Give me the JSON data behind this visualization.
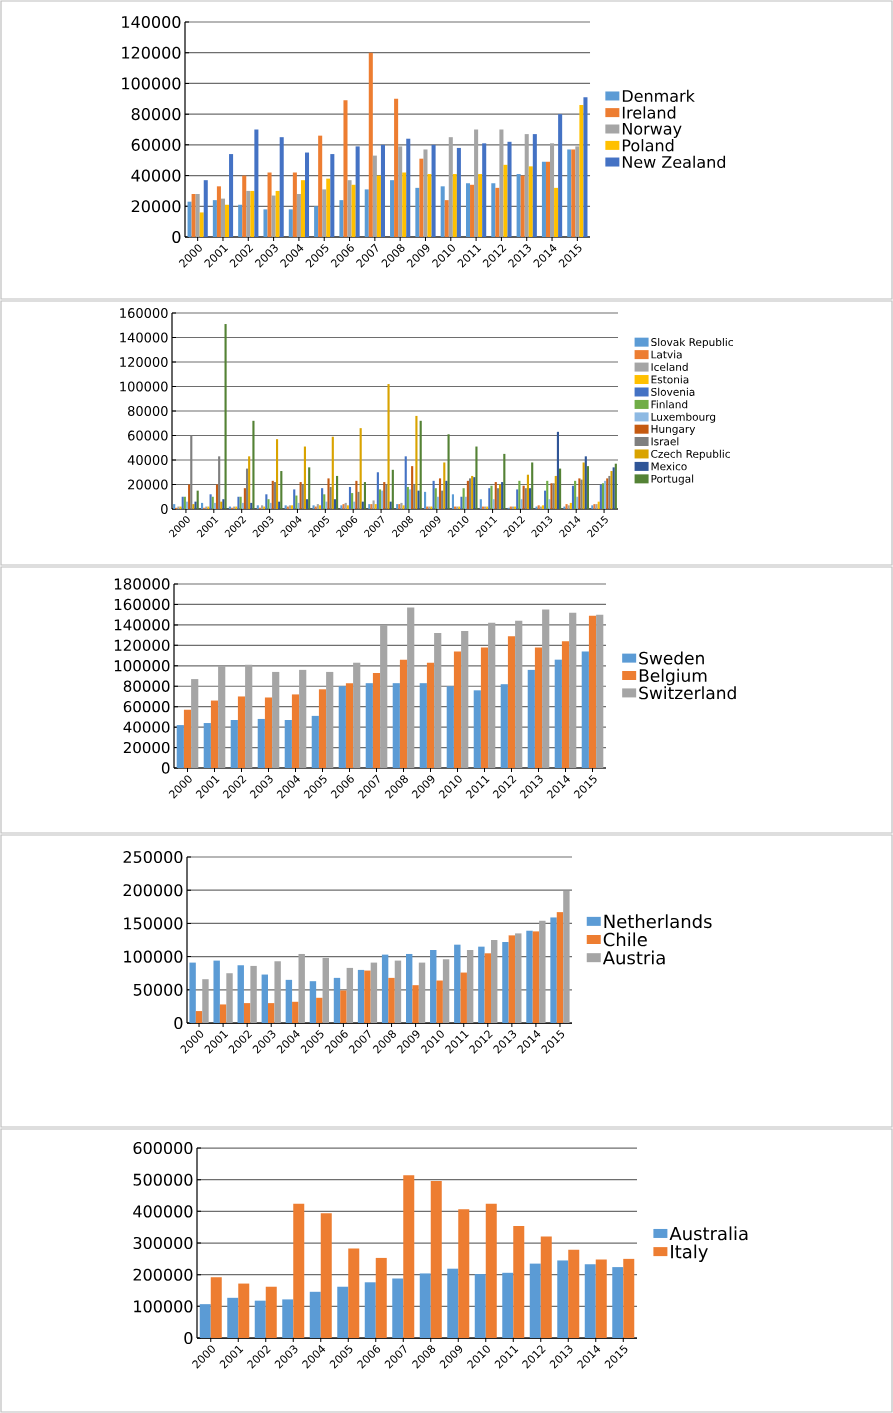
{
  "chart_data": [
    {
      "type": "bar",
      "categories": [
        "2000",
        "2001",
        "2002",
        "2003",
        "2004",
        "2005",
        "2006",
        "2007",
        "2008",
        "2009",
        "2010",
        "2011",
        "2012",
        "2013",
        "2014",
        "2015"
      ],
      "ylim": [
        0,
        140000
      ],
      "yticks": [
        0,
        20000,
        40000,
        60000,
        80000,
        100000,
        120000,
        140000
      ],
      "grid": "y",
      "legend": "right",
      "series": [
        {
          "name": "Denmark",
          "color": "#5b9bd5",
          "values": [
            23000,
            24000,
            21000,
            18000,
            18000,
            20000,
            24000,
            31000,
            37000,
            32000,
            33000,
            35000,
            35000,
            41000,
            49000,
            57000
          ]
        },
        {
          "name": "Ireland",
          "color": "#ed7d31",
          "values": [
            28000,
            33000,
            40000,
            42000,
            42000,
            66000,
            89000,
            120000,
            90000,
            51000,
            24000,
            34000,
            32000,
            40000,
            49000,
            57000
          ]
        },
        {
          "name": "Norway",
          "color": "#a5a5a5",
          "values": [
            28000,
            25000,
            30000,
            27000,
            28000,
            31000,
            37000,
            53000,
            59000,
            57000,
            65000,
            70000,
            70000,
            67000,
            61000,
            59000
          ]
        },
        {
          "name": "Poland",
          "color": "#ffc000",
          "values": [
            16000,
            21000,
            30000,
            30000,
            37000,
            38000,
            34000,
            40000,
            42000,
            41000,
            41000,
            41000,
            47000,
            46000,
            32000,
            86000
          ]
        },
        {
          "name": "New Zealand",
          "color": "#4472c4",
          "values": [
            37000,
            54000,
            70000,
            65000,
            55000,
            54000,
            59000,
            60000,
            64000,
            60000,
            58000,
            61000,
            62000,
            67000,
            80000,
            91000
          ]
        }
      ]
    },
    {
      "type": "bar",
      "categories": [
        "2000",
        "2001",
        "2002",
        "2003",
        "2004",
        "2005",
        "2006",
        "2007",
        "2008",
        "2009",
        "2010",
        "2011",
        "2012",
        "2013",
        "2014",
        "2015"
      ],
      "ylim": [
        0,
        160000
      ],
      "yticks": [
        0,
        20000,
        40000,
        60000,
        80000,
        100000,
        120000,
        140000,
        160000
      ],
      "grid": "y",
      "legend": "right",
      "series": [
        {
          "name": "Slovak Republic",
          "color": "#5b9bd5",
          "values": [
            4000,
            5000,
            2000,
            3000,
            3000,
            3000,
            3000,
            4000,
            4000,
            14000,
            12000,
            8000,
            1000,
            2000,
            2000,
            3000
          ]
        },
        {
          "name": "Latvia",
          "color": "#ed7d31",
          "values": [
            1000,
            1000,
            1000,
            1000,
            2000,
            2000,
            4000,
            4000,
            4000,
            2000,
            2000,
            2000,
            2000,
            3000,
            4000,
            4000
          ]
        },
        {
          "name": "Iceland",
          "color": "#a5a5a5",
          "values": [
            2000,
            2000,
            2000,
            3000,
            3000,
            4000,
            5000,
            7000,
            5000,
            2000,
            2000,
            2000,
            2000,
            2000,
            3000,
            4000
          ]
        },
        {
          "name": "Estonia",
          "color": "#ffc000",
          "values": [
            2000,
            2000,
            2000,
            2000,
            3000,
            3000,
            3000,
            4000,
            3000,
            2000,
            2000,
            2000,
            2000,
            3000,
            5000,
            6000
          ]
        },
        {
          "name": "Slovenia",
          "color": "#4472c4",
          "values": [
            10000,
            12000,
            10000,
            12000,
            16000,
            17000,
            18000,
            30000,
            43000,
            23000,
            10000,
            17000,
            16000,
            15000,
            19000,
            20000
          ]
        },
        {
          "name": "Finland",
          "color": "#70ad47",
          "values": [
            10000,
            10000,
            10000,
            8000,
            11000,
            12000,
            13000,
            16000,
            18000,
            17000,
            17000,
            19000,
            23000,
            23000,
            23000,
            21000
          ]
        },
        {
          "name": "Luxembourg",
          "color": "#8db9e3",
          "values": [
            6000,
            5000,
            5000,
            5000,
            5000,
            6000,
            6000,
            15000,
            16000,
            10000,
            10000,
            8000,
            8000,
            8000,
            10000,
            23000
          ]
        },
        {
          "name": "Hungary",
          "color": "#c55a11",
          "values": [
            20000,
            20000,
            17000,
            23000,
            22000,
            25000,
            23000,
            22000,
            35000,
            25000,
            23000,
            22000,
            19000,
            21000,
            25000,
            25000
          ]
        },
        {
          "name": "Israel",
          "color": "#7f7f7f",
          "values": [
            60000,
            43000,
            33000,
            22000,
            20000,
            18000,
            14000,
            20000,
            20000,
            15000,
            25000,
            17000,
            17000,
            21000,
            24000,
            27000
          ]
        },
        {
          "name": "Czech Republic",
          "color": "#d9a300",
          "values": [
            4000,
            6000,
            43000,
            57000,
            51000,
            59000,
            66000,
            102000,
            76000,
            38000,
            27000,
            20000,
            28000,
            27000,
            38000,
            31000
          ]
        },
        {
          "name": "Mexico",
          "color": "#2f5597",
          "values": [
            6000,
            8000,
            5000,
            6000,
            8000,
            8000,
            6000,
            6000,
            15000,
            23000,
            26000,
            22000,
            17000,
            63000,
            43000,
            34000
          ]
        },
        {
          "name": "Portugal",
          "color": "#548235",
          "values": [
            15000,
            151000,
            72000,
            31000,
            34000,
            27000,
            22000,
            32000,
            72000,
            61000,
            51000,
            45000,
            38000,
            33000,
            35000,
            37000
          ]
        }
      ]
    },
    {
      "type": "bar",
      "categories": [
        "2000",
        "2001",
        "2002",
        "2003",
        "2004",
        "2005",
        "2006",
        "2007",
        "2008",
        "2009",
        "2010",
        "2011",
        "2012",
        "2013",
        "2014",
        "2015"
      ],
      "ylim": [
        0,
        180000
      ],
      "yticks": [
        0,
        20000,
        40000,
        60000,
        80000,
        100000,
        120000,
        140000,
        160000,
        180000
      ],
      "grid": "y",
      "legend": "right",
      "series": [
        {
          "name": "Sweden",
          "color": "#5b9bd5",
          "values": [
            42000,
            44000,
            47000,
            48000,
            47000,
            51000,
            80000,
            83000,
            83000,
            83000,
            80000,
            76000,
            82000,
            96000,
            106000,
            114000
          ]
        },
        {
          "name": "Belgium",
          "color": "#ed7d31",
          "values": [
            57000,
            66000,
            70000,
            69000,
            72000,
            77000,
            83000,
            93000,
            106000,
            103000,
            114000,
            118000,
            129000,
            118000,
            124000,
            149000
          ]
        },
        {
          "name": "Switzerland",
          "color": "#a5a5a5",
          "values": [
            87000,
            100000,
            101000,
            94000,
            96000,
            94000,
            103000,
            140000,
            157000,
            132000,
            134000,
            142000,
            144000,
            155000,
            152000,
            150000
          ]
        }
      ]
    },
    {
      "type": "bar",
      "categories": [
        "2000",
        "2001",
        "2002",
        "2003",
        "2004",
        "2005",
        "2006",
        "2007",
        "2008",
        "2009",
        "2010",
        "2011",
        "2012",
        "2013",
        "2014",
        "2015"
      ],
      "ylim": [
        0,
        250000
      ],
      "yticks": [
        0,
        50000,
        100000,
        150000,
        200000,
        250000
      ],
      "grid": "y",
      "legend": "right",
      "series": [
        {
          "name": "Netherlands",
          "color": "#5b9bd5",
          "values": [
            91000,
            94000,
            87000,
            73000,
            65000,
            63000,
            68000,
            80000,
            103000,
            104000,
            110000,
            118000,
            115000,
            122000,
            139000,
            159000
          ]
        },
        {
          "name": "Chile",
          "color": "#ed7d31",
          "values": [
            18000,
            28000,
            30000,
            30000,
            32000,
            38000,
            49000,
            79000,
            68000,
            57000,
            64000,
            76000,
            105000,
            132000,
            138000,
            167000
          ]
        },
        {
          "name": "Austria",
          "color": "#a5a5a5",
          "values": [
            66000,
            75000,
            86000,
            93000,
            104000,
            98000,
            83000,
            91000,
            94000,
            91000,
            96000,
            110000,
            125000,
            135000,
            154000,
            199000
          ]
        }
      ]
    },
    {
      "type": "bar",
      "categories": [
        "2000",
        "2001",
        "2002",
        "2003",
        "2004",
        "2005",
        "2006",
        "2007",
        "2008",
        "2009",
        "2010",
        "2011",
        "2012",
        "2013",
        "2014",
        "2015"
      ],
      "ylim": [
        0,
        600000
      ],
      "yticks": [
        0,
        100000,
        200000,
        300000,
        400000,
        500000,
        600000
      ],
      "grid": "y",
      "legend": "right",
      "series": [
        {
          "name": "Australia",
          "color": "#5b9bd5",
          "values": [
            107000,
            127000,
            118000,
            122000,
            146000,
            162000,
            176000,
            188000,
            204000,
            219000,
            202000,
            206000,
            235000,
            245000,
            233000,
            224000
          ]
        },
        {
          "name": "Italy",
          "color": "#ed7d31",
          "values": [
            192000,
            172000,
            162000,
            424000,
            394000,
            283000,
            253000,
            514000,
            496000,
            407000,
            424000,
            354000,
            321000,
            279000,
            248000,
            250000
          ]
        }
      ]
    }
  ]
}
